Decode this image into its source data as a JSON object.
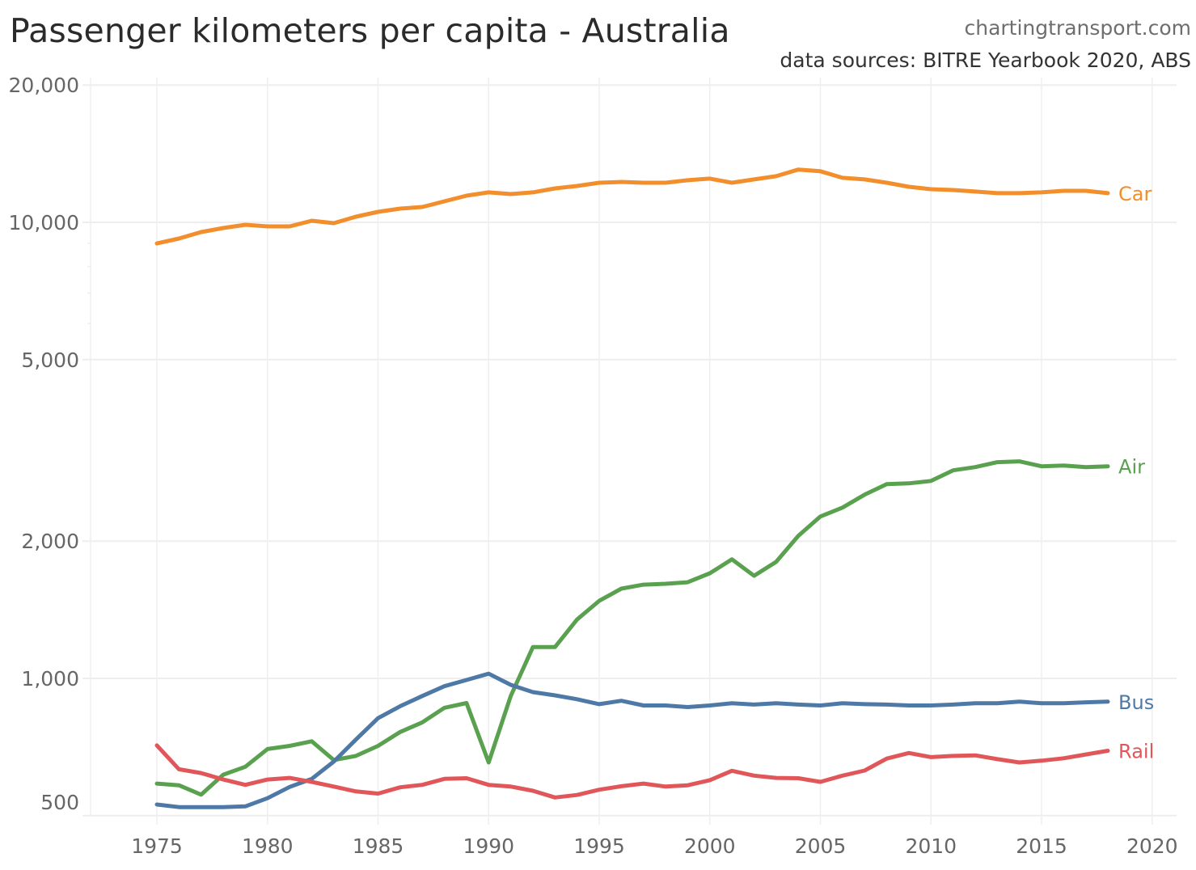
{
  "header": {
    "title": "Passenger kilometers per capita - Australia",
    "site": "chartingtransport.com",
    "sources": "data sources: BITRE Yearbook 2020, ABS"
  },
  "chart_data": {
    "type": "line",
    "title": "Passenger kilometers per capita - Australia",
    "subtitle": "data sources: BITRE Yearbook 2020, ABS",
    "xlabel": "",
    "ylabel": "",
    "yscale": "log",
    "grid": true,
    "legend": "inline-right",
    "xlim": [
      1972,
      2021
    ],
    "ylim": [
      480,
      21000
    ],
    "x_ticks": [
      1975,
      1980,
      1985,
      1990,
      1995,
      2000,
      2005,
      2010,
      2015,
      2020
    ],
    "y_ticks": [
      {
        "value": 500,
        "label": "500"
      },
      {
        "value": 1000,
        "label": "1,000"
      },
      {
        "value": 2000,
        "label": "2,000"
      },
      {
        "value": 5000,
        "label": "5,000"
      },
      {
        "value": 10000,
        "label": "10,000"
      },
      {
        "value": 20000,
        "label": "20,000"
      }
    ],
    "x": [
      1975,
      1976,
      1977,
      1978,
      1979,
      1980,
      1981,
      1982,
      1983,
      1984,
      1985,
      1986,
      1987,
      1988,
      1989,
      1990,
      1991,
      1992,
      1993,
      1994,
      1995,
      1996,
      1997,
      1998,
      1999,
      2000,
      2001,
      2002,
      2003,
      2004,
      2005,
      2006,
      2007,
      2008,
      2009,
      2010,
      2011,
      2012,
      2013,
      2014,
      2015,
      2016,
      2017,
      2018
    ],
    "series": [
      {
        "name": "Car",
        "color": "#f28e2b",
        "values": [
          8990,
          9217,
          9522,
          9718,
          9878,
          9798,
          9798,
          10082,
          9959,
          10290,
          10545,
          10719,
          10807,
          11119,
          11443,
          11633,
          11537,
          11633,
          11872,
          12019,
          12217,
          12267,
          12217,
          12217,
          12369,
          12471,
          12217,
          12420,
          12627,
          13053,
          12945,
          12522,
          12420,
          12217,
          11970,
          11823,
          11775,
          11681,
          11586,
          11586,
          11633,
          11728,
          11728,
          11586
        ]
      },
      {
        "name": "Air",
        "color": "#59a14f",
        "values": [
          588,
          583,
          556,
          615,
          640,
          700,
          711,
          728,
          662,
          676,
          711,
          763,
          801,
          862,
          883,
          654,
          915,
          1171,
          1171,
          1346,
          1479,
          1573,
          1605,
          1612,
          1625,
          1700,
          1824,
          1679,
          1801,
          2054,
          2264,
          2368,
          2528,
          2666,
          2677,
          2710,
          2859,
          2906,
          2979,
          2991,
          2918,
          2930,
          2906,
          2918
        ]
      },
      {
        "name": "Bus",
        "color": "#4e79a7",
        "values": [
          529,
          522,
          522,
          522,
          524,
          546,
          578,
          602,
          657,
          734,
          818,
          869,
          915,
          961,
          992,
          1024,
          968,
          933,
          918,
          900,
          878,
          893,
          872,
          872,
          865,
          872,
          882,
          876,
          882,
          876,
          872,
          882,
          878,
          876,
          872,
          872,
          876,
          882,
          882,
          889,
          882,
          882,
          886,
          889
        ]
      },
      {
        "name": "Rail",
        "color": "#e15759",
        "values": [
          713,
          632,
          620,
          600,
          584,
          600,
          605,
          593,
          579,
          565,
          559,
          577,
          584,
          602,
          604,
          584,
          579,
          567,
          548,
          555,
          570,
          580,
          588,
          579,
          583,
          598,
          627,
          612,
          605,
          604,
          593,
          612,
          628,
          667,
          686,
          672,
          676,
          678,
          665,
          654,
          660,
          668,
          681,
          694
        ]
      }
    ]
  }
}
